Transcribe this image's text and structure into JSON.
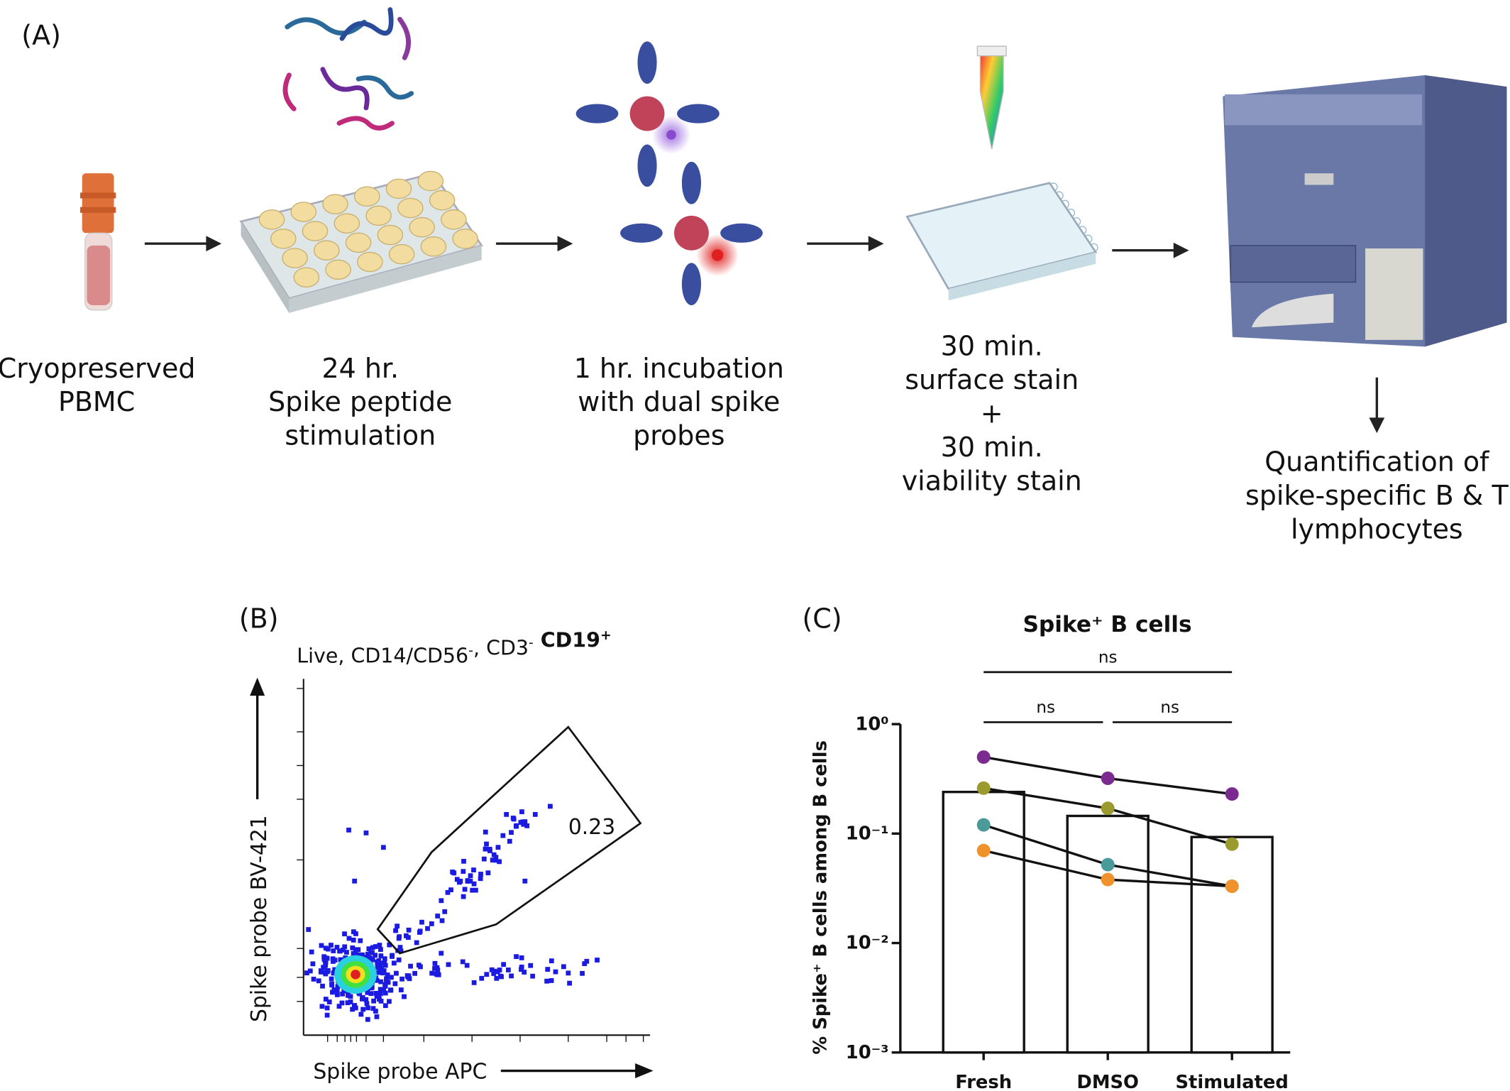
{
  "panel_a": {
    "label": "(A)",
    "steps": [
      {
        "lines": [
          "Cryopreserved",
          "PBMC"
        ]
      },
      {
        "lines": [
          "24 hr.",
          "Spike peptide",
          "stimulation"
        ]
      },
      {
        "lines": [
          "1 hr. incubation",
          "with dual spike",
          "probes"
        ]
      },
      {
        "lines": [
          "30 min.",
          "surface stain",
          "+",
          "30 min.",
          "viability stain"
        ]
      },
      {
        "lines": [
          "Quantification of",
          "spike-specific B & T",
          "lymphocytes"
        ]
      }
    ]
  },
  "panel_b": {
    "label": "(B)",
    "title": [
      {
        "text": "Live, CD14/CD56",
        "sup": "-"
      },
      {
        "text": ", CD3",
        "sup": "-"
      },
      {
        "text": " CD19",
        "sup": "+",
        "bold": true
      }
    ],
    "y_label": "Spike probe BV-421",
    "x_label": "Spike probe APC",
    "gate_value": "0.23"
  },
  "chart_data": {
    "type": "bar",
    "label": "(C)",
    "title": "Spike⁺ B cells",
    "y_label": "% Spike⁺ B cells among B cells",
    "categories": [
      "Fresh",
      "DMSO",
      "Stimulated"
    ],
    "values": [
      0.24,
      0.145,
      0.093
    ],
    "color": "#ffffff",
    "series": [
      {
        "color": "#7b2a8f",
        "values": [
          0.5,
          0.32,
          0.23
        ]
      },
      {
        "color": "#9a9a2e",
        "values": [
          0.26,
          0.17,
          0.08
        ]
      },
      {
        "color": "#4a9a9a",
        "values": [
          0.12,
          0.052,
          0.033
        ]
      },
      {
        "color": "#f0922c",
        "values": [
          0.07,
          0.038,
          0.033
        ]
      }
    ],
    "log_scale": true,
    "ylim": [
      0.001,
      1
    ],
    "yticks": [
      {
        "value": 1,
        "label": "10⁰"
      },
      {
        "value": 0.1,
        "label": "10⁻¹"
      },
      {
        "value": 0.01,
        "label": "10⁻²"
      },
      {
        "value": 0.001,
        "label": "10⁻³"
      }
    ],
    "comparisons": [
      {
        "label": "ns",
        "groups": [
          "Fresh",
          "Stimulated"
        ]
      },
      {
        "label": "ns",
        "groups": [
          "Fresh",
          "DMSO"
        ]
      },
      {
        "label": "ns",
        "groups": [
          "DMSO",
          "Stimulated"
        ]
      }
    ]
  }
}
